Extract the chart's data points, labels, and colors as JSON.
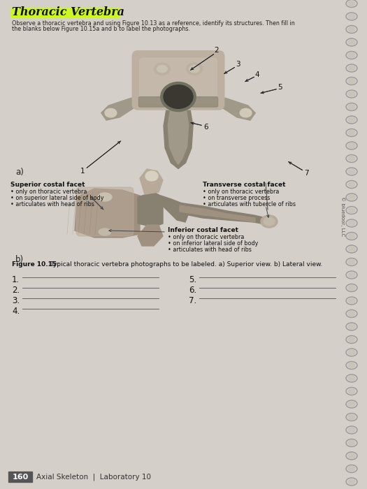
{
  "title": "Thoracic Vertebra",
  "highlight_color": "#ccff00",
  "page_bg": "#d4cfc8",
  "instruction_line1": "Observe a thoracic vertebra and using Figure 10.13 as a reference, identify its structures. Then fill in",
  "instruction_line2": "the blanks below Figure 10.15a and b to label the photographs.",
  "figure_caption_bold": "Figure 10.15:",
  "figure_caption_rest": " Typical thoracic vertebra photographs to be labeled. a) Superior view. b) Lateral view.",
  "label_scf_title": "Superior costal facet",
  "label_scf_1": "• only on thoracic vertebra",
  "label_scf_2": "• on superior lateral side of body",
  "label_scf_3": "• articulates with head of ribs",
  "label_tcf_title": "Transverse costal facet",
  "label_tcf_1": "• only on thoracic vertebra",
  "label_tcf_2": "• on transverse process",
  "label_tcf_3": "• articulates with tubercle of ribs",
  "label_icf_title": "Inferior costal facet",
  "label_icf_1": "• only on thoracic vertebra",
  "label_icf_2": "• on inferior lateral side of body",
  "label_icf_3": "• articulates with head of ribs",
  "copyright": "© bluedoor, LLC",
  "page_number": "160",
  "page_footer": "Axial Skeleton  |  Laboratory 10",
  "section_a": "a)",
  "section_b": "b)",
  "spiral_color": "#aaaaaa",
  "line_color": "#444444",
  "text_color": "#111111",
  "footer_box_color": "#555555"
}
